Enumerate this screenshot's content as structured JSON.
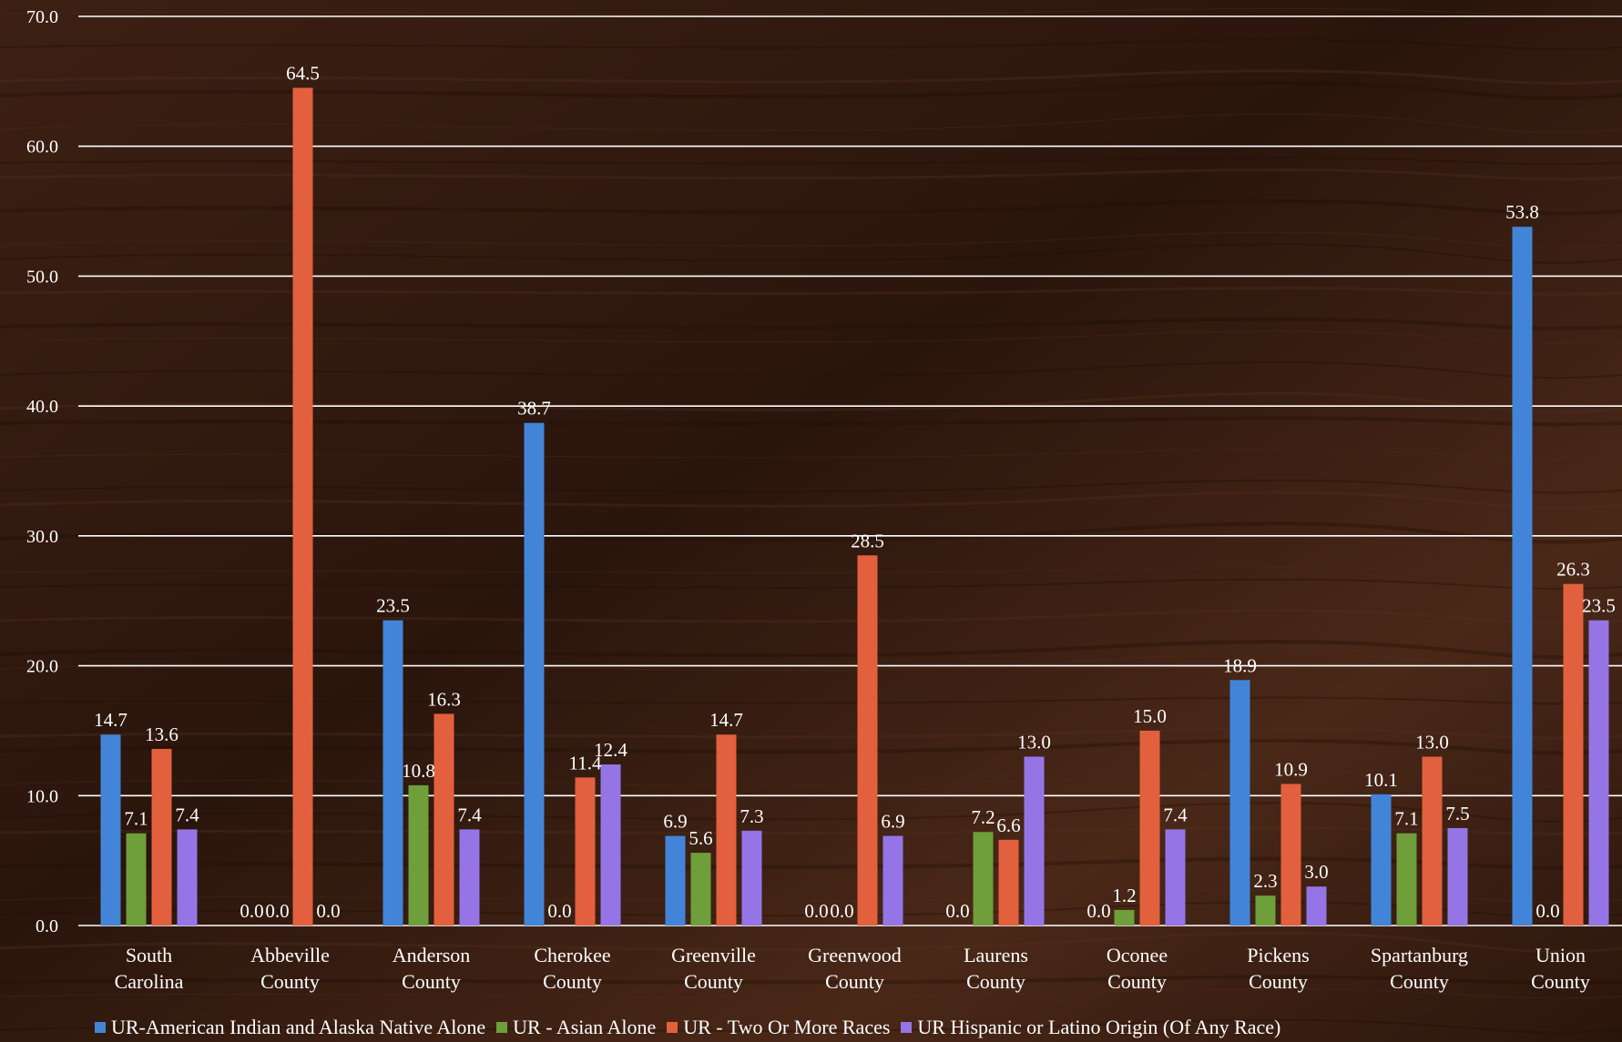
{
  "chart_data": {
    "type": "bar",
    "title": "",
    "xlabel": "",
    "ylabel": "",
    "ylim": [
      0,
      70
    ],
    "yticks": [
      "0.0",
      "10.0",
      "20.0",
      "30.0",
      "40.0",
      "50.0",
      "60.0",
      "70.0"
    ],
    "grid": true,
    "legend_position": "bottom",
    "categories": [
      [
        "South",
        "Carolina"
      ],
      [
        "Abbeville",
        "County"
      ],
      [
        "Anderson",
        "County"
      ],
      [
        "Cherokee",
        "County"
      ],
      [
        "Greenville",
        "County"
      ],
      [
        "Greenwood",
        "County"
      ],
      [
        "Laurens",
        "County"
      ],
      [
        "Oconee",
        "County"
      ],
      [
        "Pickens",
        "County"
      ],
      [
        "Spartanburg",
        "County"
      ],
      [
        "Union",
        "County"
      ]
    ],
    "series": [
      {
        "name": "UR-American Indian and Alaska Native Alone",
        "color": "#4285d8",
        "values": [
          14.7,
          0.0,
          23.5,
          38.7,
          6.9,
          0.0,
          0.0,
          0.0,
          18.9,
          10.1,
          53.8
        ]
      },
      {
        "name": "UR - Asian Alone",
        "color": "#6e9f3a",
        "values": [
          7.1,
          0.0,
          10.8,
          0.0,
          5.6,
          0.0,
          7.2,
          1.2,
          2.3,
          7.1,
          0.0
        ]
      },
      {
        "name": "UR - Two Or More Races",
        "color": "#e2603e",
        "values": [
          13.6,
          64.5,
          16.3,
          11.4,
          14.7,
          28.5,
          6.6,
          15.0,
          10.9,
          13.0,
          26.3
        ]
      },
      {
        "name": "UR Hispanic or Latino Origin (Of Any Race)",
        "color": "#9575e6",
        "values": [
          7.4,
          0.0,
          7.4,
          12.4,
          7.3,
          6.9,
          13.0,
          7.4,
          3.0,
          7.5,
          23.5
        ]
      }
    ]
  },
  "background": {
    "colors": [
      "#3d2014",
      "#2a150c",
      "#4a2818"
    ]
  }
}
